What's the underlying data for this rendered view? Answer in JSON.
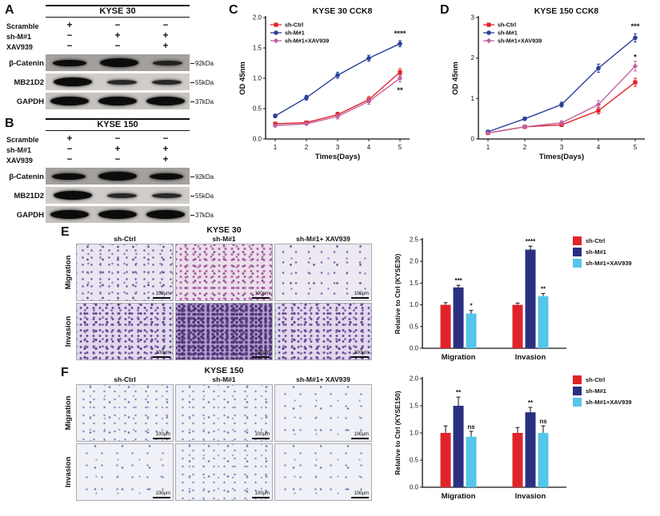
{
  "panelA": {
    "label": "A",
    "title": "KYSE 30",
    "conditions": [
      {
        "name": "Scramble",
        "marks": [
          "+",
          "−",
          "−"
        ]
      },
      {
        "name": "sh-M#1",
        "marks": [
          "−",
          "+",
          "+"
        ]
      },
      {
        "name": "XAV939",
        "marks": [
          "−",
          "−",
          "+"
        ]
      }
    ],
    "bands": [
      {
        "protein": "β-Catenin",
        "kda": "92kDa"
      },
      {
        "protein": "MB21D2",
        "kda": "55kDa"
      },
      {
        "protein": "GAPDH",
        "kda": "37kDa"
      }
    ]
  },
  "panelB": {
    "label": "B",
    "title": "KYSE 150",
    "conditions": [
      {
        "name": "Scramble",
        "marks": [
          "+",
          "−",
          "−"
        ]
      },
      {
        "name": "sh-M#1",
        "marks": [
          "−",
          "+",
          "+"
        ]
      },
      {
        "name": "XAV939",
        "marks": [
          "−",
          "−",
          "+"
        ]
      }
    ],
    "bands": [
      {
        "protein": "β-Catenin",
        "kda": "92kDa"
      },
      {
        "protein": "MB21D2",
        "kda": "55kDa"
      },
      {
        "protein": "GAPDH",
        "kda": "37kDa"
      }
    ]
  },
  "panelC": {
    "label": "C"
  },
  "panelD": {
    "label": "D"
  },
  "panelE": {
    "label": "E",
    "title": "KYSE 30",
    "columns": [
      "sh-Ctrl",
      "sh-M#1",
      "sh-M#1+ XAV939"
    ],
    "rows": [
      "Migration",
      "Invasion"
    ],
    "scale_label": "100μm"
  },
  "panelF": {
    "label": "F",
    "title": "KYSE 150",
    "columns": [
      "sh-Ctrl",
      "sh-M#1",
      "sh-M#1+ XAV939"
    ],
    "rows": [
      "Migration",
      "Invasion"
    ],
    "scale_label": "100μm"
  },
  "chart_data": [
    {
      "id": "kyse30-cck8",
      "type": "line",
      "title": "KYSE 30  CCK8",
      "xlabel": "Times(Days)",
      "ylabel": "OD 45nm",
      "x": [
        1,
        2,
        3,
        4,
        5
      ],
      "ylim": [
        0,
        2.0
      ],
      "yticks": [
        "0.0",
        "0.5",
        "1.0",
        "1.5",
        "2.0"
      ],
      "grid": false,
      "legend_position": "top-left-inside",
      "series": [
        {
          "name": "sh-Ctrl",
          "color": "#e02329",
          "marker": "square",
          "values": [
            0.25,
            0.27,
            0.4,
            0.65,
            1.1
          ],
          "errors": [
            0.02,
            0.02,
            0.04,
            0.05,
            0.06
          ]
        },
        {
          "name": "sh-M#1",
          "color": "#2b3f9b",
          "marker": "circle",
          "values": [
            0.38,
            0.68,
            1.05,
            1.33,
            1.57
          ],
          "errors": [
            0.03,
            0.04,
            0.05,
            0.05,
            0.05
          ]
        },
        {
          "name": "sh-M#1+XAV939",
          "color": "#c0609f",
          "marker": "diamond",
          "values": [
            0.22,
            0.25,
            0.37,
            0.62,
            1.0
          ],
          "errors": [
            0.02,
            0.02,
            0.04,
            0.05,
            0.06
          ]
        }
      ],
      "annotations": [
        {
          "text": "****",
          "x": 5,
          "y": 1.74
        },
        {
          "text": "**",
          "x": 5,
          "y": 0.8
        }
      ]
    },
    {
      "id": "kyse150-cck8",
      "type": "line",
      "title": "KYSE 150  CCK8",
      "xlabel": "Times(Days)",
      "ylabel": "OD 45nm",
      "x": [
        1,
        2,
        3,
        4,
        5
      ],
      "ylim": [
        0,
        3
      ],
      "yticks": [
        "0",
        "1",
        "2",
        "3"
      ],
      "grid": false,
      "legend_position": "top-left-inside",
      "series": [
        {
          "name": "sh-Ctrl",
          "color": "#e02329",
          "marker": "square",
          "values": [
            0.15,
            0.3,
            0.35,
            0.7,
            1.4
          ],
          "errors": [
            0.02,
            0.03,
            0.04,
            0.08,
            0.1
          ]
        },
        {
          "name": "sh-M#1",
          "color": "#2b3f9b",
          "marker": "circle",
          "values": [
            0.18,
            0.5,
            0.85,
            1.75,
            2.5
          ],
          "errors": [
            0.02,
            0.04,
            0.06,
            0.1,
            0.1
          ]
        },
        {
          "name": "sh-M#1+XAV939",
          "color": "#c0609f",
          "marker": "diamond",
          "values": [
            0.15,
            0.3,
            0.4,
            0.85,
            1.8
          ],
          "errors": [
            0.02,
            0.03,
            0.05,
            0.1,
            0.12
          ]
        }
      ],
      "annotations": [
        {
          "text": "***",
          "x": 5,
          "y": 2.78
        },
        {
          "text": "*",
          "x": 5,
          "y": 2.02
        }
      ]
    },
    {
      "id": "kyse30-transwell-quant",
      "type": "bar",
      "ylabel": "Relative to Ctrl (KYSE30)",
      "categories": [
        "Migration",
        "Invasion"
      ],
      "ylim": [
        0,
        2.5
      ],
      "yticks": [
        "0.0",
        "0.5",
        "1.0",
        "1.5",
        "2.0",
        "2.5"
      ],
      "series": [
        {
          "name": "sh-Ctrl",
          "color": "#e02329",
          "values": [
            1.0,
            1.0
          ],
          "errors": [
            0.05,
            0.04
          ],
          "sig": [
            "",
            ""
          ]
        },
        {
          "name": "sh-M#1",
          "color": "#2a2f80",
          "values": [
            1.4,
            2.27
          ],
          "errors": [
            0.05,
            0.08
          ],
          "sig": [
            "***",
            "****"
          ]
        },
        {
          "name": "sh-M#1+XAV939",
          "color": "#56c5ea",
          "values": [
            0.8,
            1.2
          ],
          "errors": [
            0.07,
            0.06
          ],
          "sig": [
            "*",
            "**"
          ]
        }
      ]
    },
    {
      "id": "kyse150-transwell-quant",
      "type": "bar",
      "ylabel": "Relative to Ctrl (KYSE150)",
      "categories": [
        "Migration",
        "Invasion"
      ],
      "ylim": [
        0,
        2.0
      ],
      "yticks": [
        "0.0",
        "0.5",
        "1.0",
        "1.5",
        "2.0"
      ],
      "series": [
        {
          "name": "sh-Ctrl",
          "color": "#e02329",
          "values": [
            1.0,
            1.0
          ],
          "errors": [
            0.13,
            0.1
          ],
          "sig": [
            "",
            ""
          ]
        },
        {
          "name": "sh-M#1",
          "color": "#2a2f80",
          "values": [
            1.5,
            1.38
          ],
          "errors": [
            0.16,
            0.09
          ],
          "sig": [
            "**",
            "**"
          ]
        },
        {
          "name": "sh-M#1+XAV939",
          "color": "#56c5ea",
          "values": [
            0.93,
            1.0
          ],
          "errors": [
            0.1,
            0.13
          ],
          "sig": [
            "ns",
            "ns"
          ]
        }
      ]
    }
  ]
}
